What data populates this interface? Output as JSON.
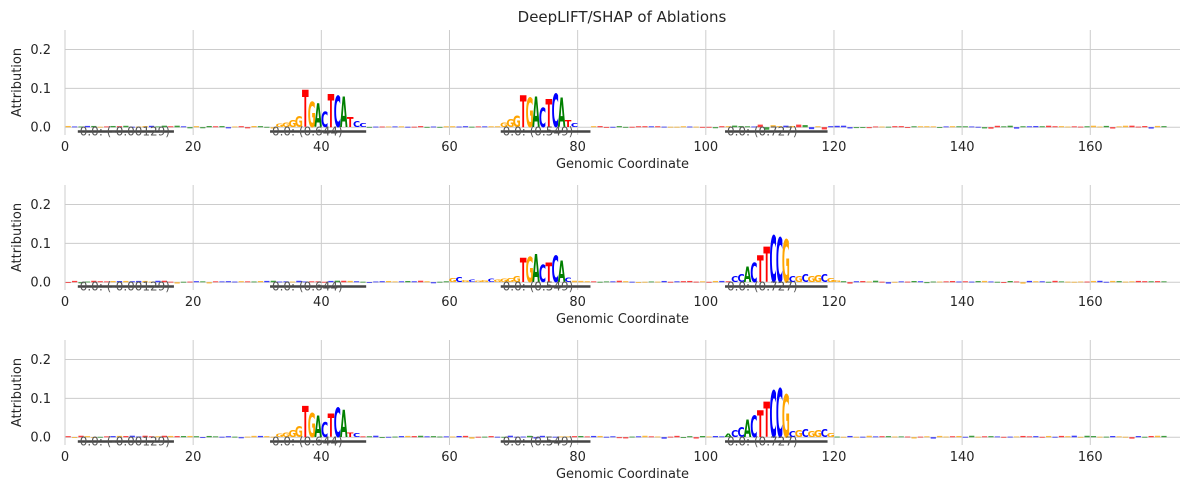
{
  "chart_data": {
    "type": "sequence-logo",
    "title": "DeepLIFT/SHAP of Ablations",
    "xlabel": "Genomic Coordinate",
    "ylabel": "Attribution",
    "xlim": [
      0,
      174
    ],
    "ylim": [
      -0.02,
      0.25
    ],
    "xticks": [
      0,
      20,
      40,
      60,
      80,
      100,
      120,
      140,
      160
    ],
    "yticks": [
      0.0,
      0.1,
      0.2
    ],
    "ytick_labels": [
      "0.0",
      "0.1",
      "0.2"
    ],
    "grid": true,
    "base_colors": {
      "A": "#008000",
      "C": "#0000ff",
      "G": "#ffa500",
      "T": "#ff0000"
    },
    "annotations": [
      {
        "x_start": 2,
        "x_end": 17,
        "label": "0.0: (-0.00129)"
      },
      {
        "x_start": 32,
        "x_end": 47,
        "label": "0.0: (0.644)"
      },
      {
        "x_start": 68,
        "x_end": 82,
        "label": "0.0: (0.549)"
      },
      {
        "x_start": 103,
        "x_end": 119,
        "label": "0.0: (0.727)"
      }
    ],
    "panels": [
      {
        "name": "panel-1",
        "motifs": [
          {
            "start": 33,
            "letters": [
              [
                "G",
                0.008
              ],
              [
                "G",
                0.012
              ],
              [
                "G",
                0.018
              ],
              [
                "G",
                0.028
              ],
              [
                "T",
                0.095
              ],
              [
                "G",
                0.065
              ],
              [
                "A",
                0.06
              ],
              [
                "C",
                0.04
              ],
              [
                "T",
                0.085
              ],
              [
                "C",
                0.08
              ],
              [
                "A",
                0.078
              ],
              [
                "T",
                0.025
              ],
              [
                "C",
                0.015
              ],
              [
                "C",
                0.01
              ]
            ]
          },
          {
            "start": 68,
            "letters": [
              [
                "G",
                0.012
              ],
              [
                "G",
                0.02
              ],
              [
                "G",
                0.03
              ],
              [
                "T",
                0.082
              ],
              [
                "G",
                0.075
              ],
              [
                "A",
                0.078
              ],
              [
                "C",
                0.05
              ],
              [
                "T",
                0.072
              ],
              [
                "C",
                0.085
              ],
              [
                "A",
                0.075
              ],
              [
                "T",
                0.018
              ],
              [
                "C",
                0.01
              ]
            ]
          }
        ],
        "background": [
          {
            "x_start": 0,
            "x_end": 33,
            "amp": 0.004
          },
          {
            "x_start": 47,
            "x_end": 68,
            "amp": 0.003
          },
          {
            "x_start": 82,
            "x_end": 104,
            "amp": 0.003
          },
          {
            "x_start": 104,
            "x_end": 120,
            "amp": 0.007
          },
          {
            "x_start": 120,
            "x_end": 172,
            "amp": 0.004
          }
        ]
      },
      {
        "name": "panel-2",
        "motifs": [
          {
            "start": 60,
            "letters": [
              [
                "G",
                0.01
              ],
              [
                "C",
                0.014
              ],
              [
                "G",
                0.004
              ],
              [
                "C",
                0.006
              ],
              [
                "G",
                0.003
              ],
              [
                "G",
                0.004
              ],
              [
                "C",
                0.008
              ],
              [
                "G",
                0.006
              ],
              [
                "G",
                0.008
              ],
              [
                "G",
                0.01
              ],
              [
                "G",
                0.015
              ],
              [
                "T",
                0.062
              ],
              [
                "G",
                0.065
              ],
              [
                "A",
                0.072
              ],
              [
                "C",
                0.045
              ],
              [
                "T",
                0.05
              ],
              [
                "C",
                0.068
              ],
              [
                "A",
                0.055
              ],
              [
                "C",
                0.012
              ]
            ]
          },
          {
            "start": 104,
            "letters": [
              [
                "C",
                0.015
              ],
              [
                "C",
                0.02
              ],
              [
                "A",
                0.04
              ],
              [
                "C",
                0.05
              ],
              [
                "T",
                0.068
              ],
              [
                "T",
                0.09
              ],
              [
                "C",
                0.12
              ],
              [
                "C",
                0.115
              ],
              [
                "G",
                0.11
              ],
              [
                "C",
                0.015
              ],
              [
                "G",
                0.015
              ],
              [
                "C",
                0.02
              ],
              [
                "G",
                0.015
              ],
              [
                "G",
                0.018
              ],
              [
                "C",
                0.02
              ],
              [
                "G",
                0.01
              ],
              [
                "G",
                0.005
              ]
            ]
          }
        ],
        "background": [
          {
            "x_start": 0,
            "x_end": 60,
            "amp": 0.004
          },
          {
            "x_start": 79,
            "x_end": 104,
            "amp": 0.004
          },
          {
            "x_start": 121,
            "x_end": 172,
            "amp": 0.004
          }
        ]
      },
      {
        "name": "panel-3",
        "motifs": [
          {
            "start": 33,
            "letters": [
              [
                "G",
                0.008
              ],
              [
                "G",
                0.012
              ],
              [
                "G",
                0.018
              ],
              [
                "G",
                0.028
              ],
              [
                "T",
                0.08
              ],
              [
                "G",
                0.062
              ],
              [
                "A",
                0.055
              ],
              [
                "C",
                0.038
              ],
              [
                "T",
                0.06
              ],
              [
                "C",
                0.075
              ],
              [
                "A",
                0.07
              ],
              [
                "T",
                0.012
              ],
              [
                "C",
                0.01
              ]
            ]
          },
          {
            "start": 103,
            "letters": [
              [
                "A",
                0.008
              ],
              [
                "C",
                0.018
              ],
              [
                "C",
                0.025
              ],
              [
                "A",
                0.045
              ],
              [
                "C",
                0.055
              ],
              [
                "T",
                0.068
              ],
              [
                "T",
                0.09
              ],
              [
                "C",
                0.12
              ],
              [
                "C",
                0.125
              ],
              [
                "G",
                0.11
              ],
              [
                "C",
                0.015
              ],
              [
                "G",
                0.018
              ],
              [
                "C",
                0.02
              ],
              [
                "G",
                0.015
              ],
              [
                "G",
                0.018
              ],
              [
                "C",
                0.02
              ],
              [
                "G",
                0.01
              ]
            ]
          }
        ],
        "background": [
          {
            "x_start": 0,
            "x_end": 33,
            "amp": 0.004
          },
          {
            "x_start": 46,
            "x_end": 103,
            "amp": 0.004
          },
          {
            "x_start": 120,
            "x_end": 172,
            "amp": 0.004
          }
        ]
      }
    ]
  }
}
